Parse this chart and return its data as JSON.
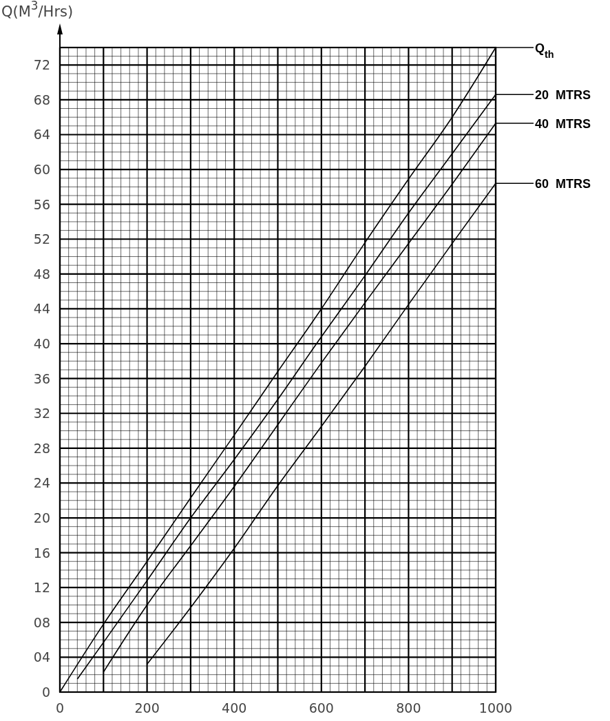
{
  "chart_data": {
    "type": "line",
    "ylabel": "Q(M$^{3}$/Hrs)",
    "xlim": [
      0,
      1000
    ],
    "ylim": [
      0,
      74
    ],
    "xticks": [
      0,
      {
        "value": 100,
        "label": null
      },
      200,
      {
        "value": 300,
        "label": null
      },
      400,
      {
        "value": 500,
        "label": null
      },
      600,
      {
        "value": 700,
        "label": null
      },
      800,
      {
        "value": 900,
        "label": null
      },
      1000
    ],
    "yticks": [
      0,
      {
        "value": 4,
        "label": "04"
      },
      {
        "value": 8,
        "label": "08"
      },
      12,
      16,
      20,
      24,
      28,
      32,
      36,
      40,
      44,
      48,
      52,
      56,
      60,
      64,
      68,
      72
    ],
    "grid": true,
    "legend": "right",
    "marker": "none",
    "line_style": "solid",
    "series": [
      {
        "name": "Q$_{th}$",
        "color": "#000000",
        "x": [
          0,
          100,
          200,
          300,
          400,
          500,
          600,
          700,
          800,
          900,
          1000
        ],
        "values": [
          0,
          7.8,
          15,
          22.3,
          29.5,
          36.8,
          44,
          51.6,
          58.9,
          66,
          74
        ]
      },
      {
        "name": "20  MTRS",
        "color": "#000000",
        "x": [
          40,
          100,
          200,
          300,
          400,
          500,
          600,
          700,
          800,
          900,
          1000
        ],
        "values": [
          1.5,
          5.7,
          12.8,
          20,
          26.7,
          33.6,
          40.8,
          47.8,
          55,
          61.8,
          68.6
        ]
      },
      {
        "name": "40  MTRS",
        "color": "#000000",
        "x": [
          100,
          200,
          300,
          400,
          500,
          600,
          700,
          800,
          900,
          1000
        ],
        "values": [
          2.3,
          10,
          16.8,
          23.6,
          30.7,
          37.8,
          44.7,
          51.5,
          58.3,
          65.3
        ]
      },
      {
        "name": "60  MTRS",
        "color": "#000000",
        "x": [
          200,
          300,
          400,
          500,
          600,
          700,
          800,
          900,
          1000
        ],
        "values": [
          3.2,
          9.7,
          16.5,
          23.7,
          30.5,
          37.4,
          44.5,
          51.5,
          58.4
        ]
      }
    ]
  }
}
